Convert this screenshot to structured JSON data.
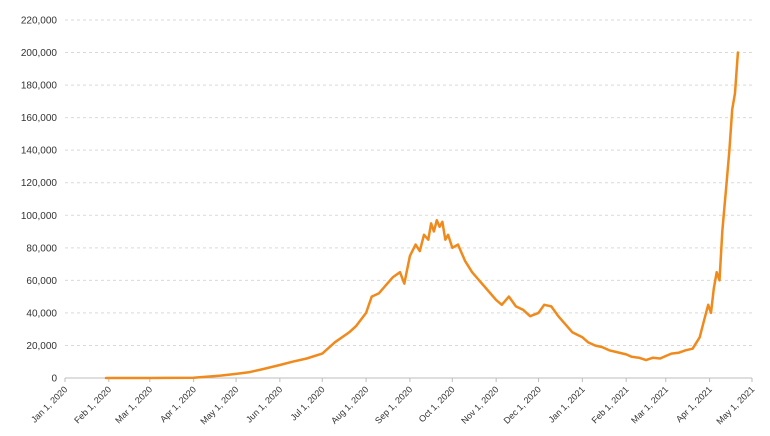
{
  "chart_data": {
    "type": "line",
    "title": "",
    "xlabel": "",
    "ylabel": "",
    "ylim": [
      0,
      220000
    ],
    "grid": true,
    "legend": "none",
    "line_color": "#F08A1C",
    "y_ticks": [
      "0",
      "20,000",
      "40,000",
      "60,000",
      "80,000",
      "100,000",
      "120,000",
      "140,000",
      "160,000",
      "180,000",
      "200,000",
      "220,000"
    ],
    "x_ticks": [
      "Jan 1, 2020",
      "Feb 1, 2020",
      "Mar 1, 2020",
      "Apr 1, 2020",
      "May 1, 2020",
      "Jun 1, 2020",
      "Jul 1, 2020",
      "Aug 1, 2020",
      "Sep 1, 2020",
      "Oct 1, 2020",
      "Nov 1, 2020",
      "Dec 1, 2020",
      "Jan 1, 2021",
      "Feb 1, 2021",
      "Mar 1, 2021",
      "Apr 1, 2021",
      "May 1, 2021"
    ],
    "series": [
      {
        "x": [
          "2020-01-30",
          "2020-02-15",
          "2020-03-01",
          "2020-03-15",
          "2020-04-01",
          "2020-04-10",
          "2020-04-20",
          "2020-05-01",
          "2020-05-10",
          "2020-05-20",
          "2020-06-01",
          "2020-06-10",
          "2020-06-20",
          "2020-07-01",
          "2020-07-10",
          "2020-07-20",
          "2020-07-25",
          "2020-08-01",
          "2020-08-05",
          "2020-08-10",
          "2020-08-15",
          "2020-08-20",
          "2020-08-25",
          "2020-08-28",
          "2020-09-01",
          "2020-09-05",
          "2020-09-08",
          "2020-09-11",
          "2020-09-14",
          "2020-09-16",
          "2020-09-18",
          "2020-09-20",
          "2020-09-22",
          "2020-09-24",
          "2020-09-26",
          "2020-09-28",
          "2020-10-01",
          "2020-10-05",
          "2020-10-10",
          "2020-10-15",
          "2020-10-20",
          "2020-10-25",
          "2020-11-01",
          "2020-11-05",
          "2020-11-10",
          "2020-11-15",
          "2020-11-20",
          "2020-11-25",
          "2020-12-01",
          "2020-12-05",
          "2020-12-10",
          "2020-12-15",
          "2020-12-20",
          "2020-12-25",
          "2021-01-01",
          "2021-01-05",
          "2021-01-10",
          "2021-01-15",
          "2021-01-20",
          "2021-01-25",
          "2021-02-01",
          "2021-02-05",
          "2021-02-10",
          "2021-02-15",
          "2021-02-20",
          "2021-02-25",
          "2021-03-01",
          "2021-03-05",
          "2021-03-10",
          "2021-03-15",
          "2021-03-20",
          "2021-03-25",
          "2021-03-28",
          "2021-03-31",
          "2021-04-02",
          "2021-04-04",
          "2021-04-06",
          "2021-04-08",
          "2021-04-10",
          "2021-04-11",
          "2021-04-13",
          "2021-04-15",
          "2021-04-17",
          "2021-04-19",
          "2021-04-21"
        ],
        "y": [
          0,
          0,
          0,
          50,
          150,
          800,
          1500,
          2500,
          3500,
          5500,
          8000,
          10000,
          12000,
          15000,
          22000,
          28000,
          32000,
          40000,
          50000,
          52000,
          57000,
          62000,
          65000,
          58000,
          75000,
          82000,
          78000,
          88000,
          85000,
          95000,
          90000,
          97000,
          93000,
          96000,
          85000,
          88000,
          80000,
          82000,
          72000,
          65000,
          60000,
          55000,
          48000,
          45000,
          50000,
          44000,
          42000,
          38000,
          40000,
          45000,
          44000,
          38000,
          33000,
          28000,
          25000,
          22000,
          20000,
          19000,
          17000,
          16000,
          14500,
          13000,
          12500,
          11000,
          12500,
          12000,
          13500,
          15000,
          15500,
          17000,
          18000,
          25000,
          35000,
          45000,
          40000,
          55000,
          65000,
          60000,
          90000,
          100000,
          120000,
          140000,
          165000,
          175000,
          200000
        ]
      }
    ]
  }
}
